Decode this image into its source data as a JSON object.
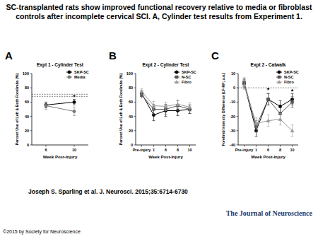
{
  "header": {
    "title": "SC-transplanted rats show improved functional recovery relative to media or fibroblast controls after incomplete cervical SCI. A, Cylinder test results from Experiment 1."
  },
  "chart_data": [
    {
      "type": "line",
      "panel": "A",
      "title": "Expt 1 - Cylinder Test",
      "x_label": "Week Post-Injury",
      "y_label": "Percent Use of Left & Both Forelimbs (%)",
      "categories": [
        "6",
        "10"
      ],
      "ylim": [
        0,
        100
      ],
      "yticks": [
        0,
        20,
        40,
        60,
        80,
        100
      ],
      "legend": "upper right",
      "reference_lines": [
        71,
        68
      ],
      "series": [
        {
          "name": "SKP-SC",
          "color": "#000000",
          "marker": "circle",
          "values": [
            56,
            60
          ],
          "errors": [
            4,
            4
          ]
        },
        {
          "name": "Media",
          "color": "#7a7a7a",
          "marker": "circle",
          "values": [
            55,
            47
          ],
          "errors": [
            5,
            6
          ]
        }
      ],
      "significance": [
        {
          "label": "*",
          "index": 1,
          "value": 66
        }
      ]
    },
    {
      "type": "line",
      "panel": "B",
      "title": "Expt 2 - Cylinder Test",
      "x_label": "Week Post-Injury",
      "y_label": "Percent Use of Left & Both Forelimbs (%)",
      "categories": [
        "Pre-injury",
        "1",
        "6",
        "8",
        "10"
      ],
      "ylim": [
        0,
        100
      ],
      "yticks": [
        0,
        20,
        40,
        60,
        80,
        100
      ],
      "legend": "upper right",
      "series": [
        {
          "name": "SKP-SC",
          "color": "#000000",
          "marker": "circle",
          "values": [
            72,
            42,
            48,
            48,
            50
          ],
          "errors": [
            4,
            8,
            8,
            7,
            6
          ]
        },
        {
          "name": "N-SC",
          "color": "#555555",
          "marker": "square",
          "values": [
            70,
            50,
            50,
            55,
            50
          ],
          "errors": [
            4,
            7,
            7,
            7,
            6
          ]
        },
        {
          "name": "Fibro",
          "color": "#999999",
          "marker": "triangle",
          "values": [
            75,
            55,
            54,
            57,
            53
          ],
          "errors": [
            4,
            6,
            6,
            6,
            6
          ]
        }
      ]
    },
    {
      "type": "line",
      "panel": "C",
      "title": "Expt 2 - Catwalk",
      "x_label": "Week Post-Injury",
      "y_label": "Forelimb Intensity Difference (LF-RF; a.u.)",
      "categories": [
        "Pre-injury",
        "1",
        "6",
        "8",
        "10"
      ],
      "ylim": [
        -40,
        10
      ],
      "yticks": [
        -40,
        -30,
        -20,
        -10,
        0,
        10
      ],
      "legend": "upper right",
      "reference_lines": [
        0
      ],
      "series": [
        {
          "name": "SKP-SC",
          "color": "#000000",
          "marker": "circle",
          "values": [
            3,
            -30,
            -8,
            -13,
            -8
          ],
          "errors": [
            3,
            4,
            4,
            4,
            4
          ]
        },
        {
          "name": "N-SC",
          "color": "#555555",
          "marker": "square",
          "values": [
            4,
            -27,
            -8,
            -18,
            -10
          ],
          "errors": [
            3,
            4,
            4,
            4,
            4
          ]
        },
        {
          "name": "Fibro",
          "color": "#999999",
          "marker": "triangle",
          "values": [
            2,
            -25,
            -23,
            -22,
            -30
          ],
          "errors": [
            3,
            4,
            4,
            4,
            4
          ]
        }
      ],
      "significance": [
        {
          "label": "*",
          "index": 2,
          "value": -2
        },
        {
          "label": "*",
          "index": 4,
          "value": -3
        }
      ]
    }
  ],
  "footer": {
    "citation": "Joseph S. Sparling et al. J. Neurosci. 2015;35:6714-6730",
    "copyright": "©2015 by Society for Neuroscience",
    "journal": "The Journal of Neuroscience"
  }
}
